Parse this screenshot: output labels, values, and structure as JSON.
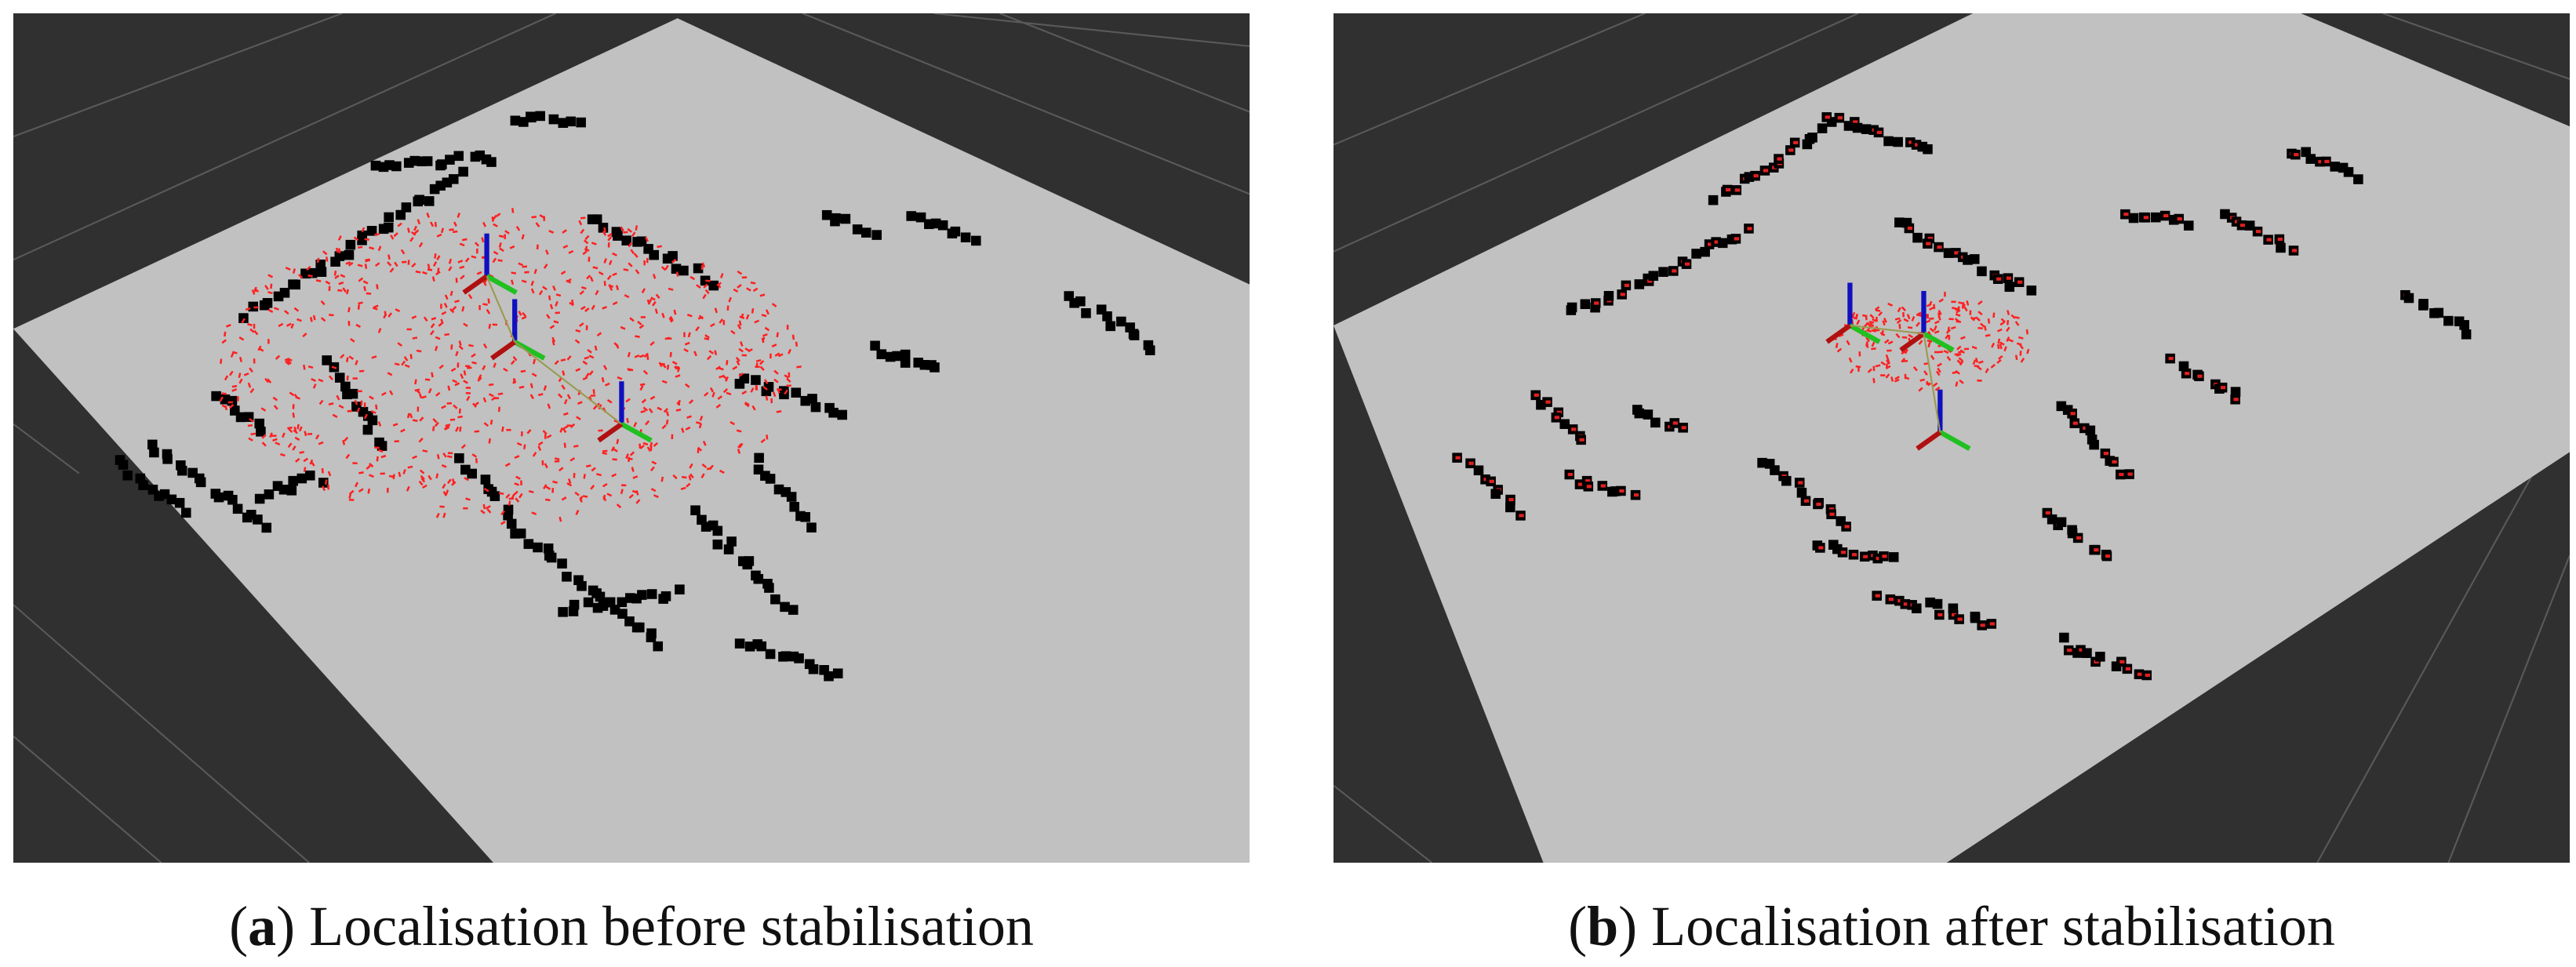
{
  "panels": [
    {
      "caption": {
        "open": "(",
        "label": "a",
        "text": ") Localisation before stabilisation"
      }
    },
    {
      "caption": {
        "open": "(",
        "label": "b",
        "text": ") Localisation after stabilisation"
      }
    }
  ]
}
